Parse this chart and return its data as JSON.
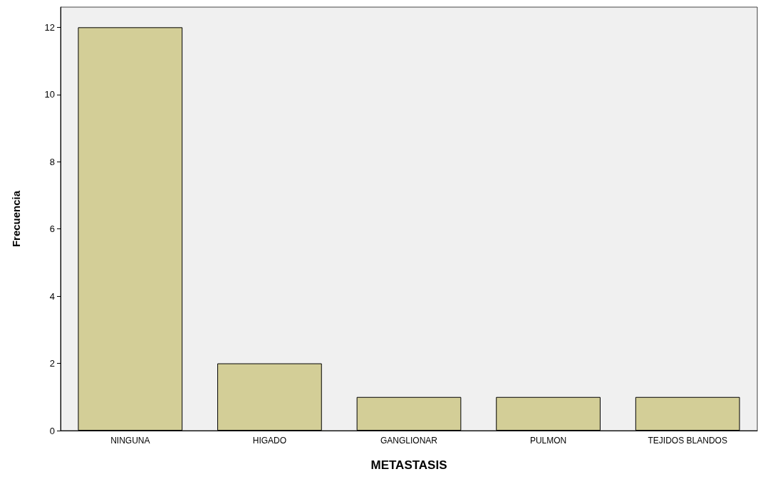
{
  "chart_data": {
    "type": "bar",
    "xlabel": "METASTASIS",
    "ylabel": "Frecuencia",
    "categories": [
      "NINGUNA",
      "HIGADO",
      "GANGLIONAR",
      "PULMON",
      "TEJIDOS BLANDOS"
    ],
    "values": [
      12,
      2,
      1,
      1,
      1
    ],
    "color": "#d3ce97",
    "ylim": [
      0,
      12.6
    ],
    "yticks": [
      0,
      2,
      4,
      6,
      8,
      10,
      12
    ],
    "grid": false
  }
}
